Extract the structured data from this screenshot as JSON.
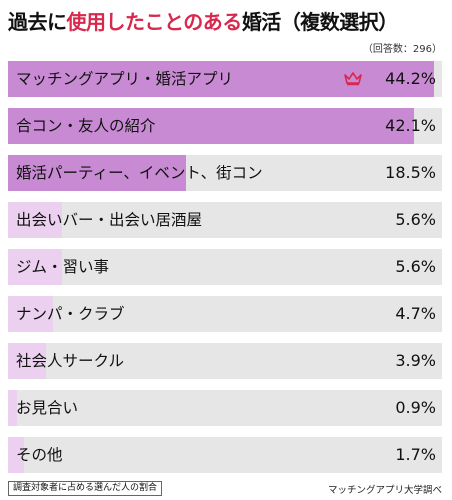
{
  "title_part1": "過去に",
  "title_accent": "使用したことのある",
  "title_part2": "婚活（複数選択）",
  "note": "（回答数：296）",
  "footer_left": "調査対象者に占める選んだ人の割合",
  "footer_right": "マッチングアプリ大学調べ",
  "crown_icon": "crown-icon",
  "colors": {
    "fill": "#c98ad4",
    "fill_light": "#ebd0ef",
    "track": "#e6e6e6",
    "accent": "#d9284d"
  },
  "chart_data": {
    "type": "bar",
    "orientation": "horizontal",
    "categories": [
      "マッチングアプリ・婚活アプリ",
      "合コン・友人の紹介",
      "婚活パーティー、イベント、街コン",
      "出会いバー・出会い居酒屋",
      "ジム・習い事",
      "ナンパ・クラブ",
      "社会人サークル",
      "お見合い",
      "その他"
    ],
    "values": [
      44.2,
      42.1,
      18.5,
      5.6,
      5.6,
      4.7,
      3.9,
      0.9,
      1.7
    ],
    "value_labels": [
      "44.2%",
      "42.1%",
      "18.5%",
      "5.6%",
      "5.6%",
      "4.7%",
      "3.9%",
      "0.9%",
      "1.7%"
    ],
    "xlim": [
      0,
      45
    ],
    "grid": false,
    "legend": "none"
  }
}
